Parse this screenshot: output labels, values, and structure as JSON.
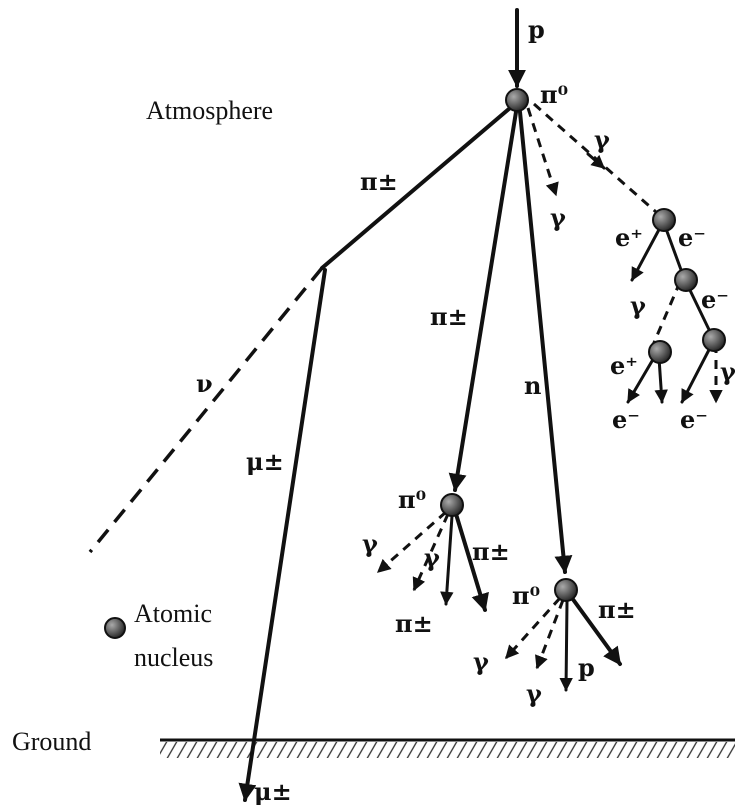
{
  "labels": {
    "atmosphere": "Atmosphere",
    "ground": "Ground",
    "atomic": "Atomic",
    "nucleus": "nucleus"
  },
  "particles": {
    "p_top": "p",
    "pi0_top": "π⁰",
    "gamma_1": "γ",
    "gamma_2": "γ",
    "pi_pm_left": "π±",
    "pi_pm_mid": "π±",
    "n": "n",
    "nu": "ν",
    "mu_pm_mid": "μ±",
    "mu_pm_bottom": "μ±",
    "e_plus_1": "e⁺",
    "e_minus_1": "e⁻",
    "gamma_3": "γ",
    "e_minus_2": "e⁻",
    "e_plus_2": "e⁺",
    "gamma_4": "γ",
    "e_minus_3": "e⁻",
    "e_minus_4": "e⁻",
    "pi0_lower_left": "π⁰",
    "gamma_5": "γ",
    "gamma_6": "γ",
    "pi_pm_5": "π±",
    "pi_pm_6": "π±",
    "pi0_lower_right": "π⁰",
    "pi_pm_7": "π±",
    "gamma_7": "γ",
    "gamma_8": "γ",
    "p_bottom": "p"
  }
}
